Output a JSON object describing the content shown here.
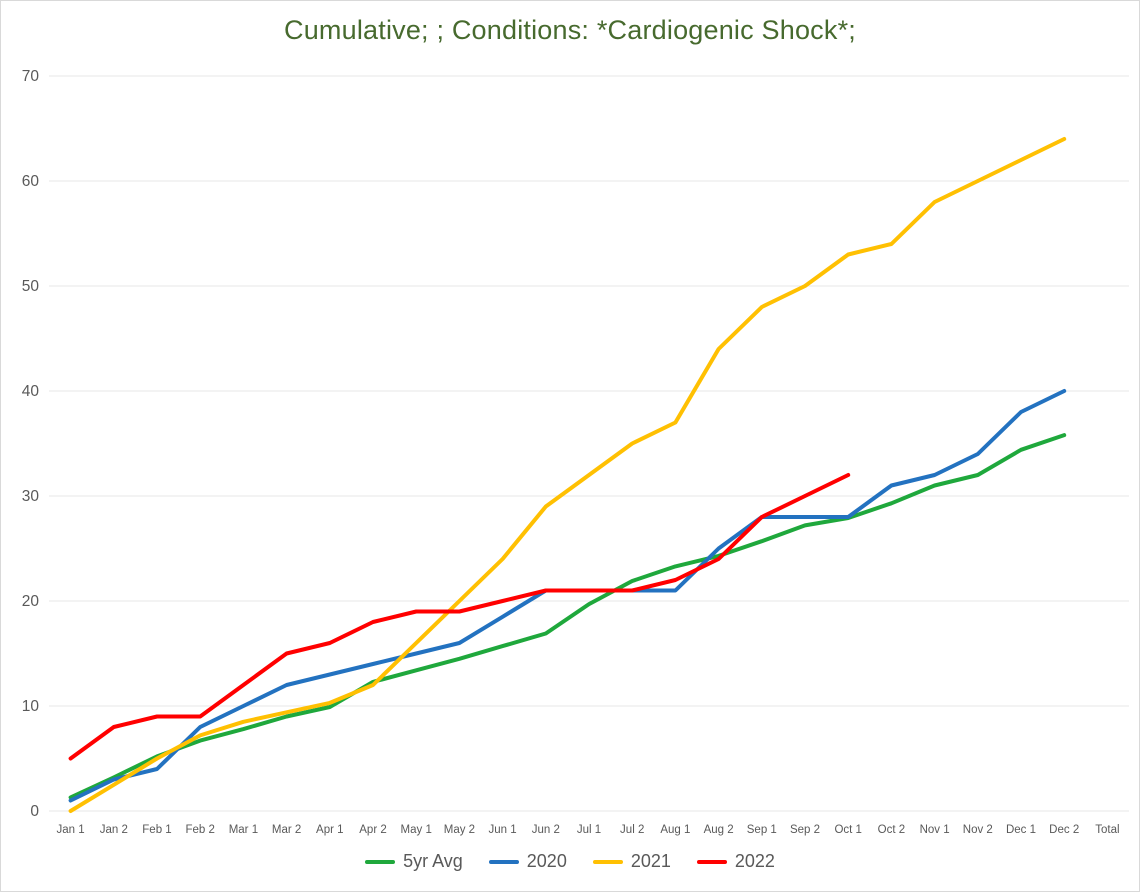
{
  "title": {
    "text": "Cumulative; ; Conditions: *Cardiogenic Shock*;",
    "color": "#476a2e"
  },
  "axis": {
    "label_color": "#595959",
    "gridline_color": "#e7e7e7"
  },
  "chart_data": {
    "type": "line",
    "title": "Cumulative; ; Conditions: *Cardiogenic Shock*;",
    "categories": [
      "Jan 1",
      "Jan 2",
      "Feb 1",
      "Feb 2",
      "Mar 1",
      "Mar 2",
      "Apr 1",
      "Apr 2",
      "May 1",
      "May 2",
      "Jun 1",
      "Jun 2",
      "Jul 1",
      "Jul 2",
      "Aug 1",
      "Aug 2",
      "Sep 1",
      "Sep 2",
      "Oct 1",
      "Oct 2",
      "Nov 1",
      "Nov 2",
      "Dec 1",
      "Dec 2",
      "Total"
    ],
    "series": [
      {
        "name": "5yr Avg",
        "color": "#1fa83c",
        "values": [
          1.3,
          3.2,
          5.2,
          6.7,
          7.8,
          9,
          9.9,
          12.3,
          13.4,
          14.5,
          15.7,
          16.9,
          19.7,
          21.9,
          23.3,
          24.3,
          25.7,
          27.2,
          27.9,
          29.3,
          31,
          32,
          34.4,
          35.8
        ]
      },
      {
        "name": "2020",
        "color": "#2372c0",
        "values": [
          1,
          3,
          4,
          8,
          10,
          12,
          13,
          14,
          15,
          16,
          18.5,
          21,
          21,
          21,
          21,
          25,
          28,
          28,
          28,
          31,
          32,
          34,
          38,
          40
        ]
      },
      {
        "name": "2021",
        "color": "#ffc002",
        "values": [
          0,
          2.5,
          5,
          7.2,
          8.5,
          9.4,
          10.3,
          12,
          16,
          20,
          24,
          29,
          32,
          35,
          37,
          44,
          48,
          50,
          53,
          54,
          58,
          60,
          62,
          64
        ]
      },
      {
        "name": "2022",
        "color": "#ff0000",
        "values": [
          5,
          8,
          9,
          9,
          12,
          15,
          16,
          18,
          19,
          19,
          20,
          21,
          21,
          21,
          22,
          24,
          28,
          30,
          32
        ]
      }
    ],
    "yticks": [
      0,
      10,
      20,
      30,
      40,
      50,
      60,
      70
    ],
    "ylim": [
      0,
      70
    ],
    "xlabel": "",
    "ylabel": "",
    "grid": "horizontal-only",
    "legend_position": "bottom"
  }
}
